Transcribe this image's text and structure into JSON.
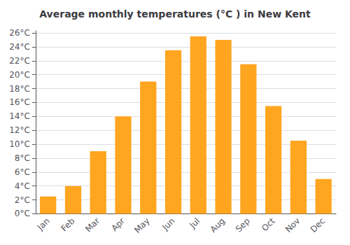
{
  "chart_data": {
    "type": "bar",
    "title": "Average monthly temperatures (°C ) in New Kent",
    "categories": [
      "Jan",
      "Feb",
      "Mar",
      "Apr",
      "May",
      "Jun",
      "Jul",
      "Aug",
      "Sep",
      "Oct",
      "Nov",
      "Dec"
    ],
    "values": [
      2.5,
      4.0,
      9.0,
      14.0,
      19.0,
      23.5,
      25.5,
      25.0,
      21.5,
      15.5,
      10.5,
      5.0
    ],
    "color": "#FFA520",
    "ylim": [
      0,
      26.3
    ],
    "yticks": [
      {
        "value": 0,
        "label": "0°C"
      },
      {
        "value": 2,
        "label": "2°C"
      },
      {
        "value": 4,
        "label": "4°C"
      },
      {
        "value": 6,
        "label": "6°C"
      },
      {
        "value": 8,
        "label": "8°C"
      },
      {
        "value": 10,
        "label": "10°C"
      },
      {
        "value": 12,
        "label": "12°C"
      },
      {
        "value": 14,
        "label": "14°C"
      },
      {
        "value": 16,
        "label": "16°C"
      },
      {
        "value": 18,
        "label": "18°C"
      },
      {
        "value": 20,
        "label": "20°C"
      },
      {
        "value": 22,
        "label": "22°C"
      },
      {
        "value": 24,
        "label": "24°C"
      },
      {
        "value": 26,
        "label": "26°C"
      }
    ],
    "grid": true
  }
}
